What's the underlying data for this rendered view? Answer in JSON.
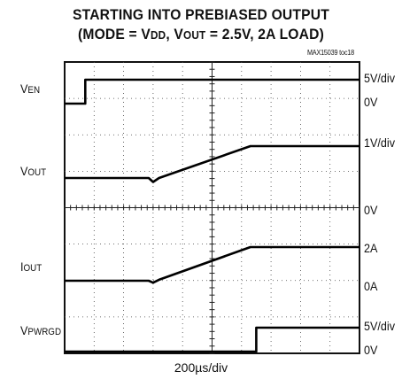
{
  "title": {
    "line1": "STARTING INTO PREBIASED OUTPUT",
    "line2_a": "(MODE = V",
    "line2_a_sub": "DD",
    "line2_b": ", V",
    "line2_b_sub": "OUT",
    "line2_c": " = 2.5V, 2A LOAD)"
  },
  "figure_code": "MAX15039 toc18",
  "xlabel": "200µs/div",
  "channels": {
    "ven": {
      "label": "V",
      "label_sub": "EN",
      "scale": "5V/div",
      "ref": "0V"
    },
    "vout": {
      "label": "V",
      "label_sub": "OUT",
      "scale": "1V/div",
      "ref": "0V"
    },
    "iout": {
      "label": "I",
      "label_sub": "OUT",
      "scale": "2A",
      "ref": "0A"
    },
    "vpwrgd": {
      "label": "V",
      "label_sub": "PWRGD",
      "scale": "5V/div",
      "ref": "0V"
    }
  },
  "chart_data": {
    "type": "line",
    "grid": true,
    "x_divisions": 10,
    "y_divisions": 8,
    "x_scale": "200µs/div",
    "series": [
      {
        "name": "VEN",
        "unit": "V",
        "volts_per_div": 5,
        "x": [
          0,
          0.7,
          0.7,
          0.85,
          0.85,
          10
        ],
        "y": [
          0,
          0,
          5,
          5,
          5,
          5
        ]
      },
      {
        "name": "VOUT",
        "unit": "V",
        "volts_per_div": 1,
        "x": [
          0,
          2.85,
          3.0,
          3.2,
          6.3,
          10
        ],
        "y": [
          1.3,
          1.3,
          1.15,
          1.3,
          2.5,
          2.5
        ]
      },
      {
        "name": "IOUT",
        "unit": "A",
        "amps_per_div": 2,
        "x": [
          0,
          2.85,
          3.0,
          3.2,
          6.3,
          10
        ],
        "y": [
          0,
          0,
          -0.1,
          0.05,
          1.7,
          1.7
        ]
      },
      {
        "name": "VPWRGD",
        "unit": "V",
        "volts_per_div": 5,
        "x": [
          0,
          6.5,
          6.5,
          10
        ],
        "y": [
          0,
          0,
          3.6,
          3.6
        ]
      }
    ]
  }
}
